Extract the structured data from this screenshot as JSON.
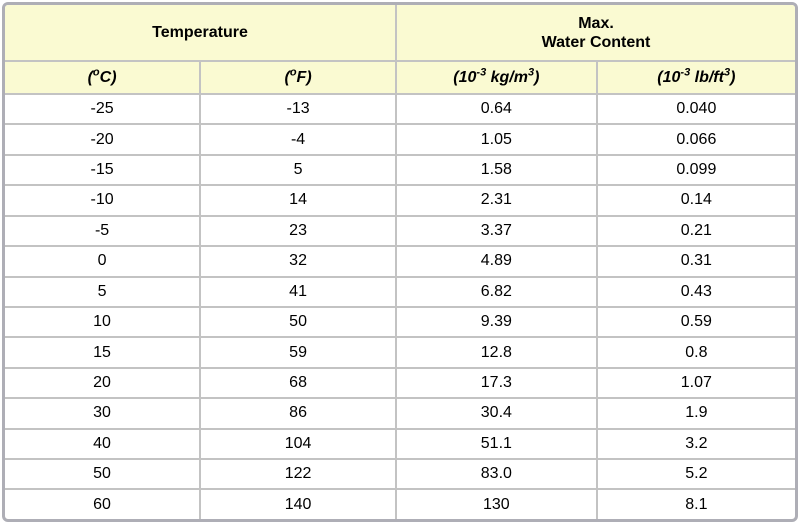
{
  "colors": {
    "header_background": "#FAFAD2",
    "cell_border": "#C3C3C3",
    "frame_border": "#AEAEB6",
    "text": "#000000"
  },
  "table": {
    "group_headers": [
      {
        "name": "group-header-temperature",
        "colspan": 2,
        "lines": [
          "Temperature"
        ]
      },
      {
        "name": "group-header-max-water-content",
        "colspan": 2,
        "lines": [
          "Max.",
          "Water Content"
        ]
      }
    ],
    "unit_headers": [
      {
        "name": "col-header-celsius",
        "segments": [
          {
            "t": "("
          },
          {
            "t": "o",
            "sup": true
          },
          {
            "t": "C)"
          }
        ]
      },
      {
        "name": "col-header-fahrenheit",
        "segments": [
          {
            "t": "("
          },
          {
            "t": "o",
            "sup": true
          },
          {
            "t": "F)"
          }
        ]
      },
      {
        "name": "col-header-kg-m3",
        "segments": [
          {
            "t": "(10"
          },
          {
            "t": "-3",
            "sup": true
          },
          {
            "t": " kg/m"
          },
          {
            "t": "3",
            "sup": true
          },
          {
            "t": ")"
          }
        ]
      },
      {
        "name": "col-header-lb-ft3",
        "segments": [
          {
            "t": "(10"
          },
          {
            "t": "-3",
            "sup": true
          },
          {
            "t": " lb/ft"
          },
          {
            "t": "3",
            "sup": true
          },
          {
            "t": ")"
          }
        ]
      }
    ],
    "rows": [
      [
        "-25",
        "-13",
        "0.64",
        "0.040"
      ],
      [
        "-20",
        "-4",
        "1.05",
        "0.066"
      ],
      [
        "-15",
        "5",
        "1.58",
        "0.099"
      ],
      [
        "-10",
        "14",
        "2.31",
        "0.14"
      ],
      [
        "-5",
        "23",
        "3.37",
        "0.21"
      ],
      [
        "0",
        "32",
        "4.89",
        "0.31"
      ],
      [
        "5",
        "41",
        "6.82",
        "0.43"
      ],
      [
        "10",
        "50",
        "9.39",
        "0.59"
      ],
      [
        "15",
        "59",
        "12.8",
        "0.8"
      ],
      [
        "20",
        "68",
        "17.3",
        "1.07"
      ],
      [
        "30",
        "86",
        "30.4",
        "1.9"
      ],
      [
        "40",
        "104",
        "51.1",
        "3.2"
      ],
      [
        "50",
        "122",
        "83.0",
        "5.2"
      ],
      [
        "60",
        "140",
        "130",
        "8.1"
      ]
    ]
  },
  "chart_data": {
    "type": "table",
    "title": "Maximum water content of air vs. temperature",
    "columns": [
      "Temperature (°C)",
      "Temperature (°F)",
      "Max. Water Content (10⁻³ kg/m³)",
      "Max. Water Content (10⁻³ lb/ft³)"
    ],
    "rows": [
      [
        -25,
        -13,
        0.64,
        0.04
      ],
      [
        -20,
        -4,
        1.05,
        0.066
      ],
      [
        -15,
        5,
        1.58,
        0.099
      ],
      [
        -10,
        14,
        2.31,
        0.14
      ],
      [
        -5,
        23,
        3.37,
        0.21
      ],
      [
        0,
        32,
        4.89,
        0.31
      ],
      [
        5,
        41,
        6.82,
        0.43
      ],
      [
        10,
        50,
        9.39,
        0.59
      ],
      [
        15,
        59,
        12.8,
        0.8
      ],
      [
        20,
        68,
        17.3,
        1.07
      ],
      [
        30,
        86,
        30.4,
        1.9
      ],
      [
        40,
        104,
        51.1,
        3.2
      ],
      [
        50,
        122,
        83.0,
        5.2
      ],
      [
        60,
        140,
        130,
        8.1
      ]
    ]
  }
}
